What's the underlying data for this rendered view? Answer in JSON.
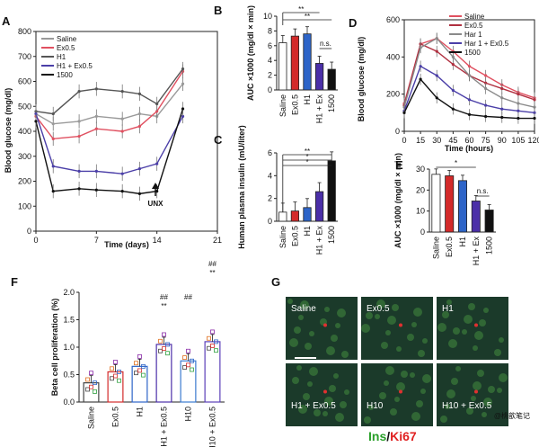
{
  "panels": {
    "A": "A",
    "B": "B",
    "C": "C",
    "D": "D",
    "E": "E",
    "F": "F",
    "G": "G"
  },
  "chart_data": [
    {
      "id": "A",
      "type": "line",
      "xlabel": "Time (days)",
      "ylabel": "Blood glucose (mg/dl)",
      "xlim": [
        0,
        21
      ],
      "ylim": [
        0,
        800
      ],
      "xticks": [
        "0",
        "7",
        "14",
        "21"
      ],
      "yticks": [
        "0",
        "100",
        "200",
        "300",
        "400",
        "500",
        "600",
        "700",
        "800"
      ],
      "annotation": "UNX",
      "x": [
        0,
        2,
        5,
        7,
        10,
        12,
        14,
        17
      ],
      "series": [
        {
          "name": "Saline",
          "color": "#9a9a9a",
          "values": [
            470,
            430,
            440,
            460,
            450,
            470,
            460,
            590
          ]
        },
        {
          "name": "Ex0.5",
          "color": "#e05060",
          "values": [
            460,
            370,
            380,
            410,
            400,
            420,
            480,
            640
          ]
        },
        {
          "name": "H1",
          "color": "#555555",
          "values": [
            480,
            470,
            560,
            570,
            560,
            550,
            510,
            650
          ]
        },
        {
          "name": "H1 + Ex0.5",
          "color": "#4b3fa8",
          "values": [
            470,
            260,
            240,
            240,
            230,
            250,
            270,
            460
          ]
        },
        {
          "name": "1500",
          "color": "#111111",
          "values": [
            440,
            160,
            170,
            165,
            160,
            150,
            160,
            490
          ]
        }
      ]
    },
    {
      "id": "B",
      "type": "bar",
      "ylabel": "AUC ×1000 (mg/dl × min)",
      "ylim": [
        0,
        10
      ],
      "yticks": [
        "0",
        "2",
        "4",
        "6",
        "8",
        "10"
      ],
      "categories": [
        "Saline",
        "Ex0.5",
        "H1",
        "H1 + Ex",
        "1500"
      ],
      "values": [
        6.4,
        7.3,
        7.6,
        3.6,
        2.8
      ],
      "colors": [
        "#ffffff",
        "#d32a2a",
        "#2d64c8",
        "#4b2fa8",
        "#111111"
      ],
      "annotations": [
        "**",
        "**",
        "n.s."
      ]
    },
    {
      "id": "C",
      "type": "bar",
      "ylabel": "Human plasma insulin (mU/liter)",
      "ylim": [
        0,
        6
      ],
      "yticks": [
        "0",
        "2",
        "4",
        "6"
      ],
      "categories": [
        "Saline",
        "Ex0.5",
        "H1",
        "H1 + Ex",
        "1500"
      ],
      "values": [
        0.8,
        0.9,
        1.2,
        2.6,
        5.3
      ],
      "colors": [
        "#ffffff",
        "#d32a2a",
        "#2d64c8",
        "#4b2fa8",
        "#111111"
      ],
      "annotations": [
        "**",
        "*",
        "*"
      ]
    },
    {
      "id": "D",
      "type": "line",
      "xlabel": "Time (hours)",
      "ylabel": "Blood glucose (mg/dl)",
      "xlim": [
        0,
        120
      ],
      "ylim": [
        0,
        600
      ],
      "xticks": [
        "0",
        "15",
        "30",
        "45",
        "60",
        "75",
        "90",
        "105",
        "120"
      ],
      "yticks": [
        "0",
        "200",
        "400",
        "600"
      ],
      "x": [
        0,
        15,
        30,
        45,
        60,
        75,
        90,
        105,
        120
      ],
      "series": [
        {
          "name": "Saline",
          "color": "#e05060",
          "values": [
            150,
            470,
            500,
            430,
            350,
            300,
            250,
            210,
            180
          ]
        },
        {
          "name": "Ex0.5",
          "color": "#b03040",
          "values": [
            140,
            470,
            430,
            360,
            300,
            260,
            230,
            200,
            170
          ]
        },
        {
          "name": "Har 1",
          "color": "#8a8a8a",
          "values": [
            130,
            450,
            500,
            400,
            300,
            230,
            180,
            150,
            130
          ]
        },
        {
          "name": "Har 1 + Ex0.5",
          "color": "#4b3fa8",
          "values": [
            110,
            350,
            300,
            220,
            170,
            140,
            120,
            110,
            100
          ]
        },
        {
          "name": "1500",
          "color": "#111111",
          "values": [
            100,
            280,
            180,
            120,
            90,
            80,
            75,
            70,
            70
          ]
        }
      ]
    },
    {
      "id": "E",
      "type": "bar",
      "ylabel": "AUC ×1000 (mg/dl × min)",
      "ylim": [
        0,
        30
      ],
      "yticks": [
        "0",
        "10",
        "20",
        "30"
      ],
      "categories": [
        "Saline",
        "Ex0.5",
        "H1",
        "H1 + Ex",
        "1500"
      ],
      "values": [
        27.5,
        26.8,
        24.5,
        14.8,
        10.5
      ],
      "colors": [
        "#ffffff",
        "#d32a2a",
        "#2d64c8",
        "#4b2fa8",
        "#111111"
      ],
      "annotations": [
        "*",
        "n.s."
      ]
    },
    {
      "id": "F",
      "type": "bar",
      "ylabel": "Beta cell proliferation (%)",
      "ylim": [
        0,
        2.0
      ],
      "yticks": [
        "0.0",
        "0.5",
        "1.0",
        "1.5",
        "2.0"
      ],
      "categories": [
        "Saline",
        "Ex0.5",
        "H1",
        "H1 + Ex0.5",
        "H10",
        "H10 + Ex0.5"
      ],
      "values": [
        0.35,
        0.55,
        0.65,
        1.05,
        0.75,
        1.1
      ],
      "colors": [
        "#444444",
        "#d32a2a",
        "#2d64c8",
        "#4b2fa8",
        "#3b7bd0",
        "#5b3fb8"
      ],
      "annotations": [
        "##",
        "**",
        "##",
        "##",
        "**"
      ]
    }
  ],
  "micrographs": {
    "labels": [
      "Saline",
      "Ex0.5",
      "H1",
      "H1 + Ex0.5",
      "H10",
      "H10 + Ex0.5"
    ],
    "stain_ins": "Ins",
    "stain_sep": "/",
    "stain_ki67": "Ki67",
    "watermark": "@桃歆笔记"
  }
}
